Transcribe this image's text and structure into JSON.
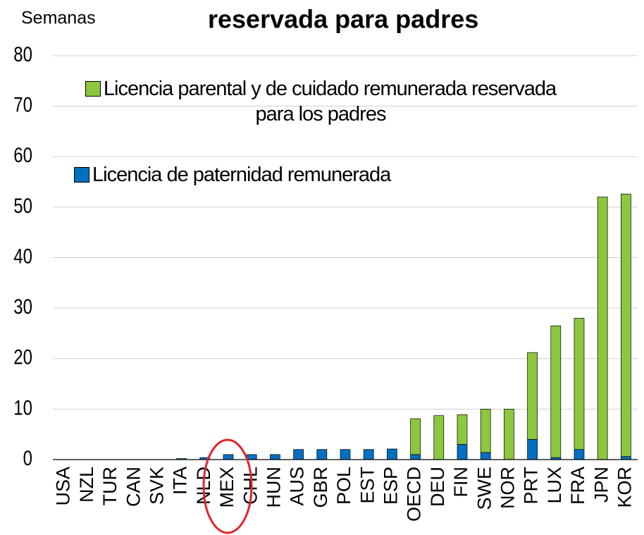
{
  "chart_data": {
    "type": "bar",
    "stacked": true,
    "title": "reservada para padres",
    "y_label": "Semanas",
    "categories": [
      "USA",
      "NZL",
      "TUR",
      "CAN",
      "SVK",
      "ITA",
      "NLD",
      "MEX",
      "CHL",
      "HUN",
      "AUS",
      "GBR",
      "POL",
      "EST",
      "ESP",
      "OECD",
      "DEU",
      "FIN",
      "SWE",
      "NOR",
      "PRT",
      "LUX",
      "FRA",
      "JPN",
      "KOR"
    ],
    "series": [
      {
        "name": "Licencia de paternidad remunerada",
        "color": "#0070c0",
        "values": [
          0,
          0,
          0,
          0,
          0,
          0.2,
          0.4,
          1,
          1,
          1,
          2,
          2,
          2,
          2,
          2.1,
          1,
          0,
          3,
          1.4,
          0,
          4,
          0.4,
          2,
          0,
          0.6
        ]
      },
      {
        "name": "Licencia parental y de cuidado remunerada reservada para los padres",
        "color": "#8dc63f",
        "values": [
          0,
          0,
          0,
          0,
          0,
          0,
          0,
          0,
          0,
          0,
          0,
          0,
          0,
          0,
          0,
          7.1,
          8.7,
          5.9,
          8.6,
          10,
          17.2,
          26.1,
          26,
          52,
          52
        ]
      }
    ],
    "ylim": [
      0,
      80
    ],
    "yticks": [
      0,
      10,
      20,
      30,
      40,
      50,
      60,
      70,
      80
    ],
    "grid": true
  }
}
